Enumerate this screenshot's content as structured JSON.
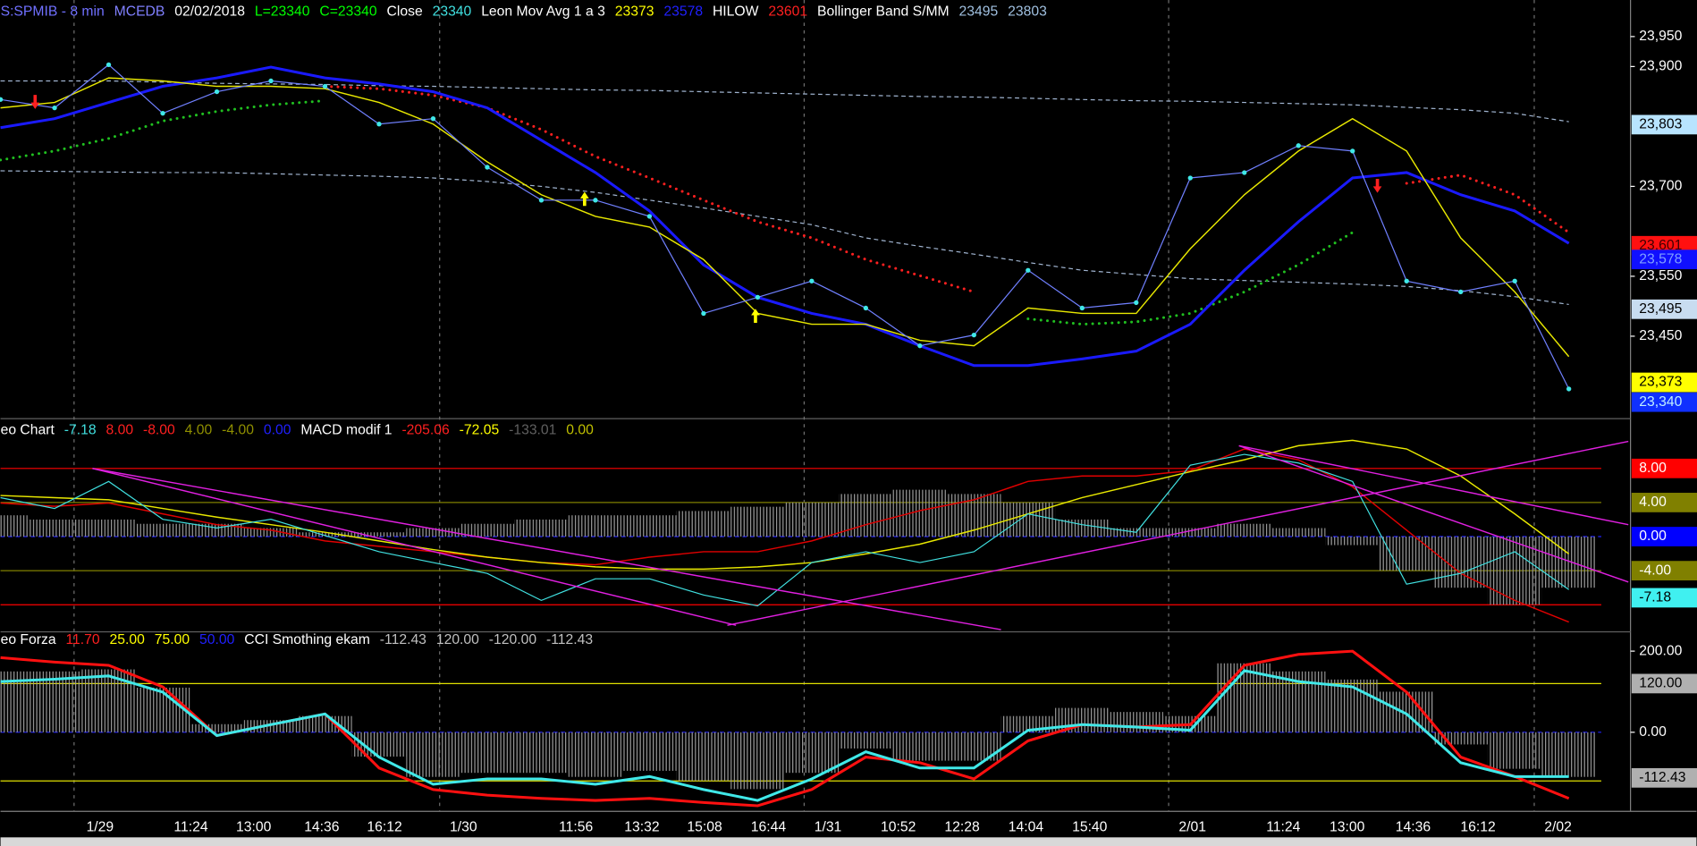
{
  "x_axis": {
    "xlim": [
      0,
      29.6
    ],
    "xticks": [
      {
        "value": 1.84,
        "label": "1/29"
      },
      {
        "value": 3.52,
        "label": "11:24"
      },
      {
        "value": 4.68,
        "label": "13:00"
      },
      {
        "value": 5.94,
        "label": "14:36"
      },
      {
        "value": 7.1,
        "label": "16:12"
      },
      {
        "value": 8.56,
        "label": "1/30"
      },
      {
        "value": 10.64,
        "label": "11:56"
      },
      {
        "value": 11.86,
        "label": "13:32"
      },
      {
        "value": 13.02,
        "label": "15:08"
      },
      {
        "value": 14.2,
        "label": "16:44"
      },
      {
        "value": 15.3,
        "label": "1/31"
      },
      {
        "value": 16.6,
        "label": "10:52"
      },
      {
        "value": 17.78,
        "label": "12:28"
      },
      {
        "value": 18.96,
        "label": "14:04"
      },
      {
        "value": 20.14,
        "label": "15:40"
      },
      {
        "value": 22.04,
        "label": "2/01"
      },
      {
        "value": 23.72,
        "label": "11:24"
      },
      {
        "value": 24.9,
        "label": "13:00"
      },
      {
        "value": 26.12,
        "label": "14:36"
      },
      {
        "value": 27.32,
        "label": "16:12"
      },
      {
        "value": 28.8,
        "label": "2/02"
      }
    ],
    "day_lines": [
      1.36,
      8.12,
      14.86,
      21.6,
      28.36
    ]
  },
  "chart_data": [
    {
      "type": "line",
      "header": [
        {
          "text": "S:SPMIB - 8 min",
          "color": "#7070ff"
        },
        {
          "text": "MCEDB",
          "color": "#8080ff"
        },
        {
          "text": "02/02/2018",
          "color": "#ffffff"
        },
        {
          "text": "L=23340",
          "color": "#00ff00"
        },
        {
          "text": "C=23340",
          "color": "#00ff00"
        },
        {
          "text": "Close",
          "color": "#ffffff"
        },
        {
          "text": "23340",
          "color": "#40e0e0"
        },
        {
          "text": "Leon Mov Avg 1 a 3",
          "color": "#ffffff"
        },
        {
          "text": "23373",
          "color": "#ffff00"
        },
        {
          "text": "23578",
          "color": "#2020ff"
        },
        {
          "text": "HILOW",
          "color": "#ffffff"
        },
        {
          "text": "23601",
          "color": "#ff2020"
        },
        {
          "text": "Bollinger Band S/MM",
          "color": "#ffffff"
        },
        {
          "text": "23495",
          "color": "#a0c0e0"
        },
        {
          "text": "23803",
          "color": "#a0c0e0"
        }
      ],
      "x": [
        0,
        1,
        2,
        3,
        4,
        5,
        6,
        7,
        8,
        9,
        10,
        11,
        12,
        13,
        14,
        15,
        16,
        17,
        18,
        19,
        20,
        21,
        22,
        23,
        24,
        25,
        26,
        27,
        28,
        29
      ],
      "ylim": [
        23316,
        24011
      ],
      "yticks": [
        {
          "value": 23950,
          "label": "23,950"
        },
        {
          "value": 23900,
          "label": "23,900"
        },
        {
          "value": 23700,
          "label": "23,700"
        },
        {
          "value": 23550,
          "label": "23,550"
        },
        {
          "value": 23450,
          "label": "23,450"
        }
      ],
      "series": [
        {
          "style": "dashed",
          "color": "#a0b4d0",
          "values": [
            23876,
            23876,
            23876,
            23874,
            23872,
            23871,
            23870,
            23868,
            23867,
            23865,
            23863,
            23861,
            23860,
            23858,
            23856,
            23854,
            23852,
            23850,
            23849,
            23847,
            23845,
            23843,
            23842,
            23840,
            23838,
            23836,
            23832,
            23828,
            23822,
            23808
          ]
        },
        {
          "style": "dashed",
          "color": "#a0b4d0",
          "values": [
            23726,
            23725,
            23724,
            23723,
            23723,
            23721,
            23719,
            23717,
            23714,
            23708,
            23700,
            23690,
            23677,
            23664,
            23650,
            23636,
            23614,
            23600,
            23587,
            23573,
            23560,
            23553,
            23546,
            23543,
            23540,
            23537,
            23533,
            23526,
            23516,
            23503
          ]
        },
        {
          "style": "dotted",
          "color": "#20c020",
          "values": [
            23744,
            23759,
            23780,
            23809,
            23825,
            23836,
            23843,
            null,
            null,
            null,
            null,
            null,
            null,
            null,
            null,
            null,
            null,
            null,
            null,
            23479,
            23470,
            23474,
            23488,
            23524,
            23569,
            23623,
            null,
            null,
            null,
            null
          ]
        },
        {
          "style": "dotted",
          "color": "#ff2020",
          "values": [
            null,
            null,
            null,
            null,
            null,
            null,
            23867,
            23863,
            23852,
            23831,
            23795,
            23750,
            23714,
            23677,
            23641,
            23614,
            23578,
            23551,
            23524,
            null,
            null,
            null,
            null,
            null,
            null,
            null,
            23705,
            23719,
            23686,
            23623
          ]
        },
        {
          "style": "line",
          "color": "#1a1aff",
          "width": 2.5,
          "values": [
            23798,
            23813,
            23840,
            23867,
            23881,
            23899,
            23881,
            23871,
            23858,
            23831,
            23777,
            23723,
            23659,
            23569,
            23515,
            23488,
            23470,
            23434,
            23401,
            23401,
            23412,
            23425,
            23470,
            23560,
            23641,
            23714,
            23723,
            23686,
            23659,
            23605
          ]
        },
        {
          "style": "line",
          "color": "#e8e800",
          "width": 1.2,
          "values": [
            23831,
            23840,
            23881,
            23876,
            23867,
            23867,
            23863,
            23840,
            23804,
            23741,
            23686,
            23650,
            23632,
            23578,
            23488,
            23470,
            23470,
            23443,
            23434,
            23497,
            23488,
            23488,
            23596,
            23686,
            23759,
            23813,
            23759,
            23614,
            23524,
            23416
          ]
        },
        {
          "style": "markers",
          "color": "#7080ff",
          "marker": "#40e8e8",
          "values": [
            23845,
            23831,
            23903,
            23822,
            23858,
            23876,
            23867,
            23804,
            23813,
            23732,
            23677,
            23677,
            23650,
            23488,
            23515,
            23542,
            23497,
            23434,
            23452,
            23560,
            23497,
            23506,
            23714,
            23723,
            23768,
            23759,
            23542,
            23524,
            23542,
            23362
          ]
        }
      ],
      "signals": [
        {
          "x": 0.64,
          "y": 23840,
          "dir": "down",
          "color": "#ff2020"
        },
        {
          "x": 10.8,
          "y": 23680,
          "dir": "up",
          "color": "#ffff00"
        },
        {
          "x": 13.96,
          "y": 23485,
          "dir": "up",
          "color": "#ffff00"
        },
        {
          "x": 25.46,
          "y": 23700,
          "dir": "down",
          "color": "#ff2020"
        }
      ],
      "markers": [
        {
          "value": 23803,
          "label": "23,803",
          "bg": "#b8e4ff",
          "fg": "#000000"
        },
        {
          "value": 23601,
          "label": "23,601",
          "bg": "#ff1010",
          "fg": "#400000"
        },
        {
          "value": 23578,
          "label": "23,578",
          "bg": "#1010ff",
          "fg": "#80a0ff"
        },
        {
          "value": 23495,
          "label": "23,495",
          "bg": "#c8dcf0",
          "fg": "#000000"
        },
        {
          "value": 23373,
          "label": "23,373",
          "bg": "#ffff00",
          "fg": "#000000"
        },
        {
          "value": 23340,
          "label": "23,340",
          "bg": "#1030ff",
          "fg": "#c0f0ff"
        }
      ]
    },
    {
      "type": "line",
      "header": [
        {
          "text": "eo Chart",
          "color": "#ffffff"
        },
        {
          "text": "-7.18",
          "color": "#40e0e0"
        },
        {
          "text": "8.00",
          "color": "#ff2020"
        },
        {
          "text": "-8.00",
          "color": "#ff2020"
        },
        {
          "text": "4.00",
          "color": "#909000"
        },
        {
          "text": "-4.00",
          "color": "#909000"
        },
        {
          "text": "0.00",
          "color": "#2020ff"
        },
        {
          "text": "MACD modif 1",
          "color": "#ffffff"
        },
        {
          "text": "-205.06",
          "color": "#ff2020"
        },
        {
          "text": "-72.05",
          "color": "#ffff00"
        },
        {
          "text": "-133.01",
          "color": "#606060"
        },
        {
          "text": "0.00",
          "color": "#c0c000"
        }
      ],
      "x": [
        0,
        1,
        2,
        3,
        4,
        5,
        6,
        7,
        8,
        9,
        10,
        11,
        12,
        13,
        14,
        15,
        16,
        17,
        18,
        19,
        20,
        21,
        22,
        23,
        24,
        25,
        26,
        27,
        28,
        29
      ],
      "ylim": [
        -10.92,
        13.46
      ],
      "yticks": [
        {
          "value": 8,
          "label": "8.00",
          "bg": "#ff0000",
          "fg": "#ffffff"
        },
        {
          "value": 4,
          "label": "4.00",
          "bg": "#808000",
          "fg": "#ffffff"
        },
        {
          "value": 0,
          "label": "0.00",
          "bg": "#0000ff",
          "fg": "#ffffff"
        },
        {
          "value": -4,
          "label": "-4.00",
          "bg": "#808000",
          "fg": "#ffffff"
        }
      ],
      "hlines": [
        {
          "value": 8,
          "color": "#ff0000"
        },
        {
          "value": 4,
          "color": "#808000"
        },
        {
          "value": 0,
          "color": "#2020ff"
        },
        {
          "value": -4,
          "color": "#808000"
        },
        {
          "value": -8,
          "color": "#ff0000"
        }
      ],
      "series": [
        {
          "style": "histogram",
          "color": "#909090",
          "values": [
            2.5,
            2,
            2,
            1.5,
            1.5,
            1,
            0.5,
            0.5,
            1,
            1.5,
            2,
            2.5,
            2.5,
            3,
            3.5,
            4,
            5,
            5.5,
            5,
            4,
            2,
            1,
            1,
            1.5,
            1,
            -1,
            -4,
            -6,
            -8,
            -6
          ]
        },
        {
          "style": "line",
          "color": "#e00000",
          "width": 1.2,
          "values": [
            3.94,
            3.56,
            3.94,
            2.67,
            1.4,
            0.76,
            -0.51,
            -1.14,
            -1.78,
            -2.41,
            -3.05,
            -3.3,
            -2.41,
            -1.78,
            -1.78,
            -0.51,
            1.4,
            3.05,
            4.32,
            6.48,
            7.11,
            7.11,
            7.75,
            10.29,
            9.02,
            5.84,
            0.76,
            -4.32,
            -7.49,
            -10.03
          ]
        },
        {
          "style": "line",
          "color": "#e8e800",
          "width": 1.2,
          "values": [
            4.83,
            4.57,
            4.32,
            3.3,
            2.29,
            1.4,
            0.51,
            -0.51,
            -1.52,
            -2.41,
            -3.05,
            -3.56,
            -3.81,
            -3.81,
            -3.56,
            -3.05,
            -2.03,
            -0.89,
            0.76,
            2.67,
            4.57,
            6.1,
            7.62,
            9.02,
            10.67,
            11.3,
            10.29,
            7.11,
            2.67,
            -2.03
          ]
        },
        {
          "style": "line",
          "color": "#40e0e0",
          "width": 1,
          "values": [
            4.57,
            3.3,
            6.48,
            2.03,
            1.02,
            2.03,
            0.13,
            -1.78,
            -3.05,
            -4.32,
            -7.49,
            -4.95,
            -4.95,
            -6.86,
            -8.13,
            -3.05,
            -1.78,
            -3.05,
            -1.78,
            2.67,
            1.4,
            0.51,
            8.38,
            9.65,
            8.63,
            6.48,
            -5.59,
            -4.32,
            -1.78,
            -6.22
          ]
        }
      ],
      "markers": [
        {
          "value": -7.18,
          "label": "-7.18",
          "bg": "#40f0f0",
          "fg": "#000000"
        }
      ]
    },
    {
      "type": "line",
      "header": [
        {
          "text": "eo Forza",
          "color": "#ffffff"
        },
        {
          "text": "11.70",
          "color": "#ff2020"
        },
        {
          "text": "25.00",
          "color": "#ffff00"
        },
        {
          "text": "75.00",
          "color": "#ffff00"
        },
        {
          "text": "50.00",
          "color": "#2020ff"
        },
        {
          "text": "CCI Smothing ekam",
          "color": "#ffffff"
        },
        {
          "text": "-112.43",
          "color": "#c0c0c0"
        },
        {
          "text": "120.00",
          "color": "#c0c0c0"
        },
        {
          "text": "-120.00",
          "color": "#c0c0c0"
        },
        {
          "text": "-112.43",
          "color": "#c0c0c0"
        }
      ],
      "x": [
        0,
        1,
        2,
        3,
        4,
        5,
        6,
        7,
        8,
        9,
        10,
        11,
        12,
        13,
        14,
        15,
        16,
        17,
        18,
        19,
        20,
        21,
        22,
        23,
        24,
        25,
        26,
        27,
        28,
        29
      ],
      "ylim": [
        -195,
        245
      ],
      "yticks": [
        {
          "value": 200,
          "label": "200.00"
        },
        {
          "value": 0,
          "label": "0.00"
        }
      ],
      "hlines": [
        {
          "value": 120,
          "color": "#e0e000"
        },
        {
          "value": 0,
          "color": "#2020ff"
        },
        {
          "value": -120,
          "color": "#e0e000"
        }
      ],
      "series": [
        {
          "style": "histogram",
          "color": "#b0b0b0",
          "values": [
            150,
            150,
            155,
            110,
            20,
            30,
            40,
            -60,
            -110,
            -100,
            -100,
            -110,
            -95,
            -120,
            -140,
            -100,
            -40,
            -70,
            -70,
            40,
            60,
            50,
            40,
            170,
            150,
            130,
            100,
            -30,
            -90,
            -110
          ]
        },
        {
          "style": "line",
          "color": "#ff1010",
          "width": 2.5,
          "values": [
            184,
            173,
            165,
            112,
            -8,
            19,
            45,
            -88,
            -141,
            -155,
            -163,
            -168,
            -163,
            -173,
            -181,
            -141,
            -61,
            -75,
            -115,
            -21,
            19,
            13,
            19,
            165,
            192,
            200,
            99,
            -61,
            -109,
            -163
          ]
        },
        {
          "style": "line",
          "color": "#40e8e8",
          "width": 2.5,
          "values": [
            125,
            131,
            139,
            99,
            -8,
            19,
            45,
            -61,
            -128,
            -115,
            -115,
            -128,
            -109,
            -141,
            -168,
            -115,
            -48,
            -88,
            -88,
            5,
            19,
            13,
            5,
            152,
            125,
            112,
            45,
            -75,
            -109,
            -109
          ]
        }
      ],
      "markers": [
        {
          "value": 120,
          "label": "120.00",
          "bg": "#b0b0b0",
          "fg": "#000000"
        },
        {
          "value": -112.43,
          "label": "-112.43",
          "bg": "#b0b0b0",
          "fg": "#000000"
        }
      ]
    }
  ]
}
